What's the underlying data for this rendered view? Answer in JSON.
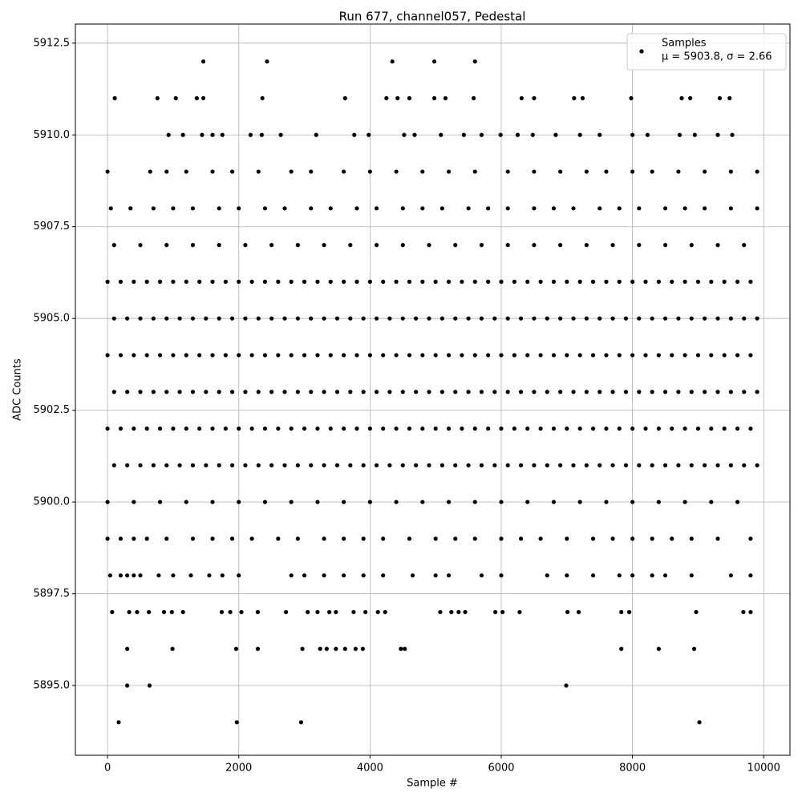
{
  "chart_data": {
    "type": "scatter",
    "title": "Run 677, channel057, Pedestal",
    "x_label": "Sample #",
    "y_label": "ADC Counts",
    "xlim": [
      -490,
      10400
    ],
    "ylim": [
      5893.1,
      5913.02
    ],
    "xticks": [
      0,
      2000,
      4000,
      6000,
      8000,
      10000
    ],
    "yticks": [
      {
        "value": 5895,
        "label": "5895.0"
      },
      {
        "value": 5897.5,
        "label": "5897.5"
      },
      {
        "value": 5900,
        "label": "5900.0"
      },
      {
        "value": 5902.5,
        "label": "5902.5"
      },
      {
        "value": 5905,
        "label": "5905.0"
      },
      {
        "value": 5907.5,
        "label": "5907.5"
      },
      {
        "value": 5910,
        "label": "5910.0"
      },
      {
        "value": 5912.5,
        "label": "5912.5"
      }
    ],
    "grid": true,
    "legend": "upper right",
    "legend_note": "μ = 5903.8, σ = 2.66",
    "series": [
      {
        "name": "Samples",
        "color": "#000000",
        "x": [
          1460,
          2430,
          4340,
          4980,
          5600,
          110,
          760,
          1040,
          1360,
          1460,
          2360,
          3620,
          4250,
          4420,
          4600,
          4980,
          5150,
          5580,
          6310,
          6500,
          7110,
          7240,
          7980,
          8750,
          8880,
          9330,
          9480,
          930,
          1150,
          1440,
          1600,
          1750,
          2180,
          2350,
          2640,
          3180,
          3760,
          3980,
          4520,
          4680,
          5080,
          5430,
          5700,
          5990,
          6250,
          6480,
          6830,
          7200,
          7500,
          8000,
          8230,
          8720,
          8950,
          9300,
          9520,
          0,
          650,
          900,
          1200,
          1600,
          1900,
          2300,
          2800,
          3100,
          3600,
          4000,
          4400,
          4800,
          5200,
          5600,
          6100,
          6500,
          6900,
          7300,
          7600,
          8000,
          8300,
          8700,
          9100,
          9500,
          9900,
          50,
          350,
          700,
          1000,
          1300,
          1700,
          2000,
          2400,
          2700,
          3100,
          3400,
          3800,
          4100,
          4500,
          4800,
          5100,
          5500,
          5800,
          6100,
          6500,
          6800,
          7100,
          7500,
          7800,
          8100,
          8500,
          8800,
          9100,
          9500,
          9900,
          100,
          500,
          900,
          1300,
          1700,
          2100,
          2500,
          2900,
          3300,
          3700,
          4100,
          4500,
          4900,
          5300,
          5700,
          6100,
          6500,
          6900,
          7300,
          7700,
          8100,
          8500,
          8900,
          9300,
          9700,
          0,
          200,
          400,
          600,
          800,
          1000,
          1200,
          1400,
          1600,
          1800,
          2000,
          2200,
          2400,
          2600,
          2800,
          3000,
          3200,
          3400,
          3600,
          3800,
          4000,
          4200,
          4400,
          4600,
          4800,
          5000,
          5200,
          5400,
          5600,
          5800,
          6000,
          6200,
          6400,
          6600,
          6800,
          7000,
          7200,
          7400,
          7600,
          7800,
          8000,
          8200,
          8400,
          8600,
          8800,
          9000,
          9200,
          9400,
          9600,
          9800,
          100,
          300,
          500,
          700,
          900,
          1100,
          1300,
          1500,
          1700,
          1900,
          2100,
          2300,
          2500,
          2700,
          2900,
          3100,
          3300,
          3500,
          3700,
          3900,
          4100,
          4300,
          4500,
          4700,
          4900,
          5100,
          5300,
          5500,
          5700,
          5900,
          6100,
          6300,
          6500,
          6700,
          6900,
          7100,
          7300,
          7500,
          7700,
          7900,
          8100,
          8300,
          8500,
          8700,
          8900,
          9100,
          9300,
          9500,
          9700,
          9900,
          0,
          200,
          400,
          600,
          800,
          1000,
          1200,
          1400,
          1600,
          1800,
          2000,
          2200,
          2400,
          2600,
          2800,
          3000,
          3200,
          3400,
          3600,
          3800,
          4000,
          4200,
          4400,
          4600,
          4800,
          5000,
          5200,
          5400,
          5600,
          5800,
          6000,
          6200,
          6400,
          6600,
          6800,
          7000,
          7200,
          7400,
          7600,
          7800,
          8000,
          8200,
          8400,
          8600,
          8800,
          9000,
          9200,
          9400,
          9600,
          9800,
          100,
          300,
          500,
          700,
          900,
          1100,
          1300,
          1500,
          1700,
          1900,
          2100,
          2300,
          2500,
          2700,
          2900,
          3100,
          3300,
          3500,
          3700,
          3900,
          4100,
          4300,
          4500,
          4700,
          4900,
          5100,
          5300,
          5500,
          5700,
          5900,
          6100,
          6300,
          6500,
          6700,
          6900,
          7100,
          7300,
          7500,
          7700,
          7900,
          8100,
          8300,
          8500,
          8700,
          8900,
          9100,
          9300,
          9500,
          9700,
          9900,
          0,
          200,
          400,
          600,
          800,
          1000,
          1200,
          1400,
          1600,
          1800,
          2000,
          2200,
          2400,
          2600,
          2800,
          3000,
          3200,
          3400,
          3600,
          3800,
          4000,
          4200,
          4400,
          4600,
          4800,
          5000,
          5200,
          5400,
          5600,
          5800,
          6000,
          6200,
          6400,
          6600,
          6800,
          7000,
          7200,
          7400,
          7600,
          7800,
          8000,
          8200,
          8400,
          8600,
          8800,
          9000,
          9200,
          9400,
          9600,
          9800,
          100,
          300,
          500,
          700,
          900,
          1100,
          1300,
          1500,
          1700,
          1900,
          2100,
          2300,
          2500,
          2700,
          2900,
          3100,
          3300,
          3500,
          3700,
          3900,
          4100,
          4300,
          4500,
          4700,
          4900,
          5100,
          5300,
          5500,
          5700,
          5900,
          6100,
          6300,
          6500,
          6700,
          6900,
          7100,
          7300,
          7500,
          7700,
          7900,
          8100,
          8300,
          8500,
          8700,
          8900,
          9100,
          9300,
          9500,
          9700,
          9900,
          0,
          400,
          800,
          1200,
          1600,
          2000,
          2400,
          2800,
          3200,
          3600,
          4000,
          4400,
          4800,
          5200,
          5600,
          6000,
          6400,
          6800,
          7200,
          7600,
          8000,
          8400,
          8800,
          9200,
          9600,
          0,
          200,
          400,
          600,
          900,
          1300,
          1600,
          1900,
          2200,
          2600,
          2900,
          3300,
          3600,
          3900,
          4200,
          4600,
          5000,
          5300,
          5600,
          6000,
          6300,
          6600,
          7000,
          7400,
          7700,
          8000,
          8300,
          8600,
          8900,
          9300,
          9800,
          40,
          200,
          300,
          400,
          500,
          780,
          1000,
          1270,
          1550,
          1750,
          2000,
          2800,
          3000,
          3300,
          3600,
          3900,
          4200,
          4650,
          5000,
          5200,
          5700,
          6000,
          6700,
          7000,
          7400,
          7800,
          8000,
          8300,
          8500,
          8900,
          9500,
          9800,
          70,
          330,
          450,
          630,
          860,
          980,
          1150,
          1740,
          1870,
          2040,
          2290,
          2720,
          3050,
          3200,
          3380,
          3480,
          3750,
          3930,
          4120,
          4230,
          5070,
          5240,
          5350,
          5450,
          5910,
          6020,
          6280,
          7010,
          7180,
          7830,
          7950,
          8970,
          9690,
          9800,
          300,
          990,
          1960,
          2290,
          2970,
          3240,
          3340,
          3480,
          3620,
          3780,
          3890,
          4470,
          4530,
          7830,
          8400,
          8940,
          300,
          640,
          6990,
          170,
          1970,
          2950,
          9020
        ],
        "values": [
          5912,
          5912,
          5912,
          5912,
          5912,
          5911,
          5911,
          5911,
          5911,
          5911,
          5911,
          5911,
          5911,
          5911,
          5911,
          5911,
          5911,
          5911,
          5911,
          5911,
          5911,
          5911,
          5911,
          5911,
          5911,
          5911,
          5911,
          5910,
          5910,
          5910,
          5910,
          5910,
          5910,
          5910,
          5910,
          5910,
          5910,
          5910,
          5910,
          5910,
          5910,
          5910,
          5910,
          5910,
          5910,
          5910,
          5910,
          5910,
          5910,
          5910,
          5910,
          5910,
          5910,
          5910,
          5910,
          5909,
          5909,
          5909,
          5909,
          5909,
          5909,
          5909,
          5909,
          5909,
          5909,
          5909,
          5909,
          5909,
          5909,
          5909,
          5909,
          5909,
          5909,
          5909,
          5909,
          5909,
          5909,
          5909,
          5909,
          5909,
          5909,
          5908,
          5908,
          5908,
          5908,
          5908,
          5908,
          5908,
          5908,
          5908,
          5908,
          5908,
          5908,
          5908,
          5908,
          5908,
          5908,
          5908,
          5908,
          5908,
          5908,
          5908,
          5908,
          5908,
          5908,
          5908,
          5908,
          5908,
          5908,
          5908,
          5908,
          5907,
          5907,
          5907,
          5907,
          5907,
          5907,
          5907,
          5907,
          5907,
          5907,
          5907,
          5907,
          5907,
          5907,
          5907,
          5907,
          5907,
          5907,
          5907,
          5907,
          5907,
          5907,
          5907,
          5907,
          5907,
          5906,
          5906,
          5906,
          5906,
          5906,
          5906,
          5906,
          5906,
          5906,
          5906,
          5906,
          5906,
          5906,
          5906,
          5906,
          5906,
          5906,
          5906,
          5906,
          5906,
          5906,
          5906,
          5906,
          5906,
          5906,
          5906,
          5906,
          5906,
          5906,
          5906,
          5906,
          5906,
          5906,
          5906,
          5906,
          5906,
          5906,
          5906,
          5906,
          5906,
          5906,
          5906,
          5906,
          5906,
          5906,
          5906,
          5906,
          5906,
          5906,
          5906,
          5905,
          5905,
          5905,
          5905,
          5905,
          5905,
          5905,
          5905,
          5905,
          5905,
          5905,
          5905,
          5905,
          5905,
          5905,
          5905,
          5905,
          5905,
          5905,
          5905,
          5905,
          5905,
          5905,
          5905,
          5905,
          5905,
          5905,
          5905,
          5905,
          5905,
          5905,
          5905,
          5905,
          5905,
          5905,
          5905,
          5905,
          5905,
          5905,
          5905,
          5905,
          5905,
          5905,
          5905,
          5905,
          5905,
          5905,
          5905,
          5905,
          5905,
          5904,
          5904,
          5904,
          5904,
          5904,
          5904,
          5904,
          5904,
          5904,
          5904,
          5904,
          5904,
          5904,
          5904,
          5904,
          5904,
          5904,
          5904,
          5904,
          5904,
          5904,
          5904,
          5904,
          5904,
          5904,
          5904,
          5904,
          5904,
          5904,
          5904,
          5904,
          5904,
          5904,
          5904,
          5904,
          5904,
          5904,
          5904,
          5904,
          5904,
          5904,
          5904,
          5904,
          5904,
          5904,
          5904,
          5904,
          5904,
          5904,
          5904,
          5903,
          5903,
          5903,
          5903,
          5903,
          5903,
          5903,
          5903,
          5903,
          5903,
          5903,
          5903,
          5903,
          5903,
          5903,
          5903,
          5903,
          5903,
          5903,
          5903,
          5903,
          5903,
          5903,
          5903,
          5903,
          5903,
          5903,
          5903,
          5903,
          5903,
          5903,
          5903,
          5903,
          5903,
          5903,
          5903,
          5903,
          5903,
          5903,
          5903,
          5903,
          5903,
          5903,
          5903,
          5903,
          5903,
          5903,
          5903,
          5903,
          5903,
          5902,
          5902,
          5902,
          5902,
          5902,
          5902,
          5902,
          5902,
          5902,
          5902,
          5902,
          5902,
          5902,
          5902,
          5902,
          5902,
          5902,
          5902,
          5902,
          5902,
          5902,
          5902,
          5902,
          5902,
          5902,
          5902,
          5902,
          5902,
          5902,
          5902,
          5902,
          5902,
          5902,
          5902,
          5902,
          5902,
          5902,
          5902,
          5902,
          5902,
          5902,
          5902,
          5902,
          5902,
          5902,
          5902,
          5902,
          5902,
          5902,
          5902,
          5901,
          5901,
          5901,
          5901,
          5901,
          5901,
          5901,
          5901,
          5901,
          5901,
          5901,
          5901,
          5901,
          5901,
          5901,
          5901,
          5901,
          5901,
          5901,
          5901,
          5901,
          5901,
          5901,
          5901,
          5901,
          5901,
          5901,
          5901,
          5901,
          5901,
          5901,
          5901,
          5901,
          5901,
          5901,
          5901,
          5901,
          5901,
          5901,
          5901,
          5901,
          5901,
          5901,
          5901,
          5901,
          5901,
          5901,
          5901,
          5901,
          5901,
          5900,
          5900,
          5900,
          5900,
          5900,
          5900,
          5900,
          5900,
          5900,
          5900,
          5900,
          5900,
          5900,
          5900,
          5900,
          5900,
          5900,
          5900,
          5900,
          5900,
          5900,
          5900,
          5900,
          5900,
          5900,
          5899,
          5899,
          5899,
          5899,
          5899,
          5899,
          5899,
          5899,
          5899,
          5899,
          5899,
          5899,
          5899,
          5899,
          5899,
          5899,
          5899,
          5899,
          5899,
          5899,
          5899,
          5899,
          5899,
          5899,
          5899,
          5899,
          5899,
          5899,
          5899,
          5899,
          5899,
          5898,
          5898,
          5898,
          5898,
          5898,
          5898,
          5898,
          5898,
          5898,
          5898,
          5898,
          5898,
          5898,
          5898,
          5898,
          5898,
          5898,
          5898,
          5898,
          5898,
          5898,
          5898,
          5898,
          5898,
          5898,
          5898,
          5898,
          5898,
          5898,
          5898,
          5898,
          5898,
          5897,
          5897,
          5897,
          5897,
          5897,
          5897,
          5897,
          5897,
          5897,
          5897,
          5897,
          5897,
          5897,
          5897,
          5897,
          5897,
          5897,
          5897,
          5897,
          5897,
          5897,
          5897,
          5897,
          5897,
          5897,
          5897,
          5897,
          5897,
          5897,
          5897,
          5897,
          5897,
          5897,
          5897,
          5896,
          5896,
          5896,
          5896,
          5896,
          5896,
          5896,
          5896,
          5896,
          5896,
          5896,
          5896,
          5896,
          5896,
          5896,
          5896,
          5895,
          5895,
          5895,
          5894,
          5894,
          5894,
          5894
        ]
      }
    ]
  }
}
